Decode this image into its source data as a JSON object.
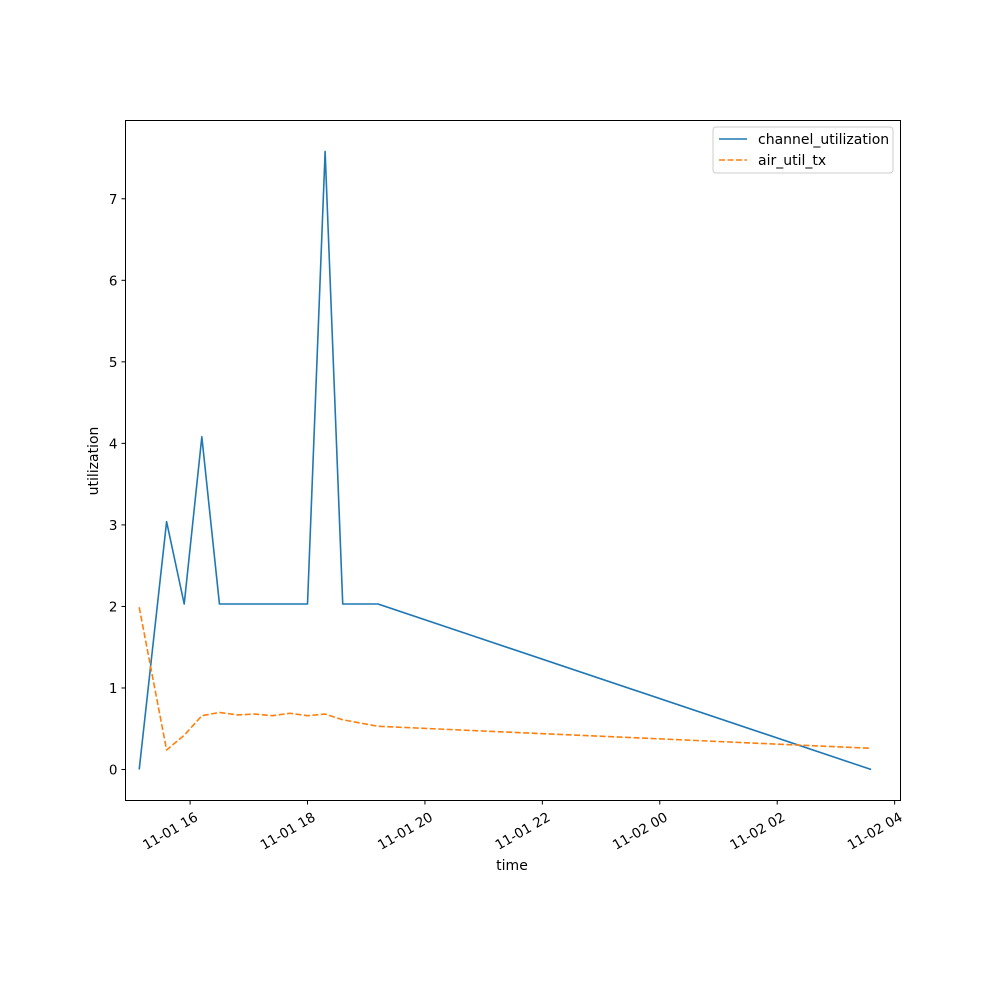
{
  "chart_data": {
    "type": "line",
    "xlabel": "time",
    "ylabel": "utilization",
    "x_format": "MM-DD HH",
    "xlim": [
      "2023-11-01 14:54",
      "2023-11-02 04:06"
    ],
    "ylim": [
      -0.38,
      7.96
    ],
    "xticks": [
      "2023-11-01 16:00",
      "2023-11-01 18:00",
      "2023-11-01 20:00",
      "2023-11-01 22:00",
      "2023-11-02 00:00",
      "2023-11-02 02:00",
      "2023-11-02 04:00"
    ],
    "xtick_labels": [
      "11-01 16",
      "11-01 18",
      "11-01 20",
      "11-01 22",
      "11-02 00",
      "11-02 02",
      "11-02 04"
    ],
    "yticks": [
      0,
      1,
      2,
      3,
      4,
      5,
      6,
      7
    ],
    "ytick_labels": [
      "0",
      "1",
      "2",
      "3",
      "4",
      "5",
      "6",
      "7"
    ],
    "grid": false,
    "legend_position": "top-right",
    "series": [
      {
        "name": "channel_utilization",
        "color": "#1f77b4",
        "style": "solid",
        "points": [
          {
            "x": "2023-11-01 15:08",
            "y": 0
          },
          {
            "x": "2023-11-01 15:36",
            "y": 3.04
          },
          {
            "x": "2023-11-01 15:54",
            "y": 2.03
          },
          {
            "x": "2023-11-01 16:12",
            "y": 4.08
          },
          {
            "x": "2023-11-01 16:30",
            "y": 2.03
          },
          {
            "x": "2023-11-01 18:00",
            "y": 2.03
          },
          {
            "x": "2023-11-01 18:18",
            "y": 7.58
          },
          {
            "x": "2023-11-01 18:36",
            "y": 2.03
          },
          {
            "x": "2023-11-01 19:12",
            "y": 2.03
          },
          {
            "x": "2023-11-02 03:36",
            "y": 0
          }
        ]
      },
      {
        "name": "air_util_tx",
        "color": "#ff7f0e",
        "style": "dashed",
        "points": [
          {
            "x": "2023-11-01 15:08",
            "y": 1.99
          },
          {
            "x": "2023-11-01 15:36",
            "y": 0.24
          },
          {
            "x": "2023-11-01 15:54",
            "y": 0.42
          },
          {
            "x": "2023-11-01 16:12",
            "y": 0.66
          },
          {
            "x": "2023-11-01 16:30",
            "y": 0.7
          },
          {
            "x": "2023-11-01 16:48",
            "y": 0.67
          },
          {
            "x": "2023-11-01 17:06",
            "y": 0.68
          },
          {
            "x": "2023-11-01 17:24",
            "y": 0.66
          },
          {
            "x": "2023-11-01 17:42",
            "y": 0.69
          },
          {
            "x": "2023-11-01 18:00",
            "y": 0.66
          },
          {
            "x": "2023-11-01 18:18",
            "y": 0.68
          },
          {
            "x": "2023-11-01 18:36",
            "y": 0.61
          },
          {
            "x": "2023-11-01 19:12",
            "y": 0.53
          },
          {
            "x": "2023-11-02 03:36",
            "y": 0.26
          }
        ]
      }
    ]
  }
}
